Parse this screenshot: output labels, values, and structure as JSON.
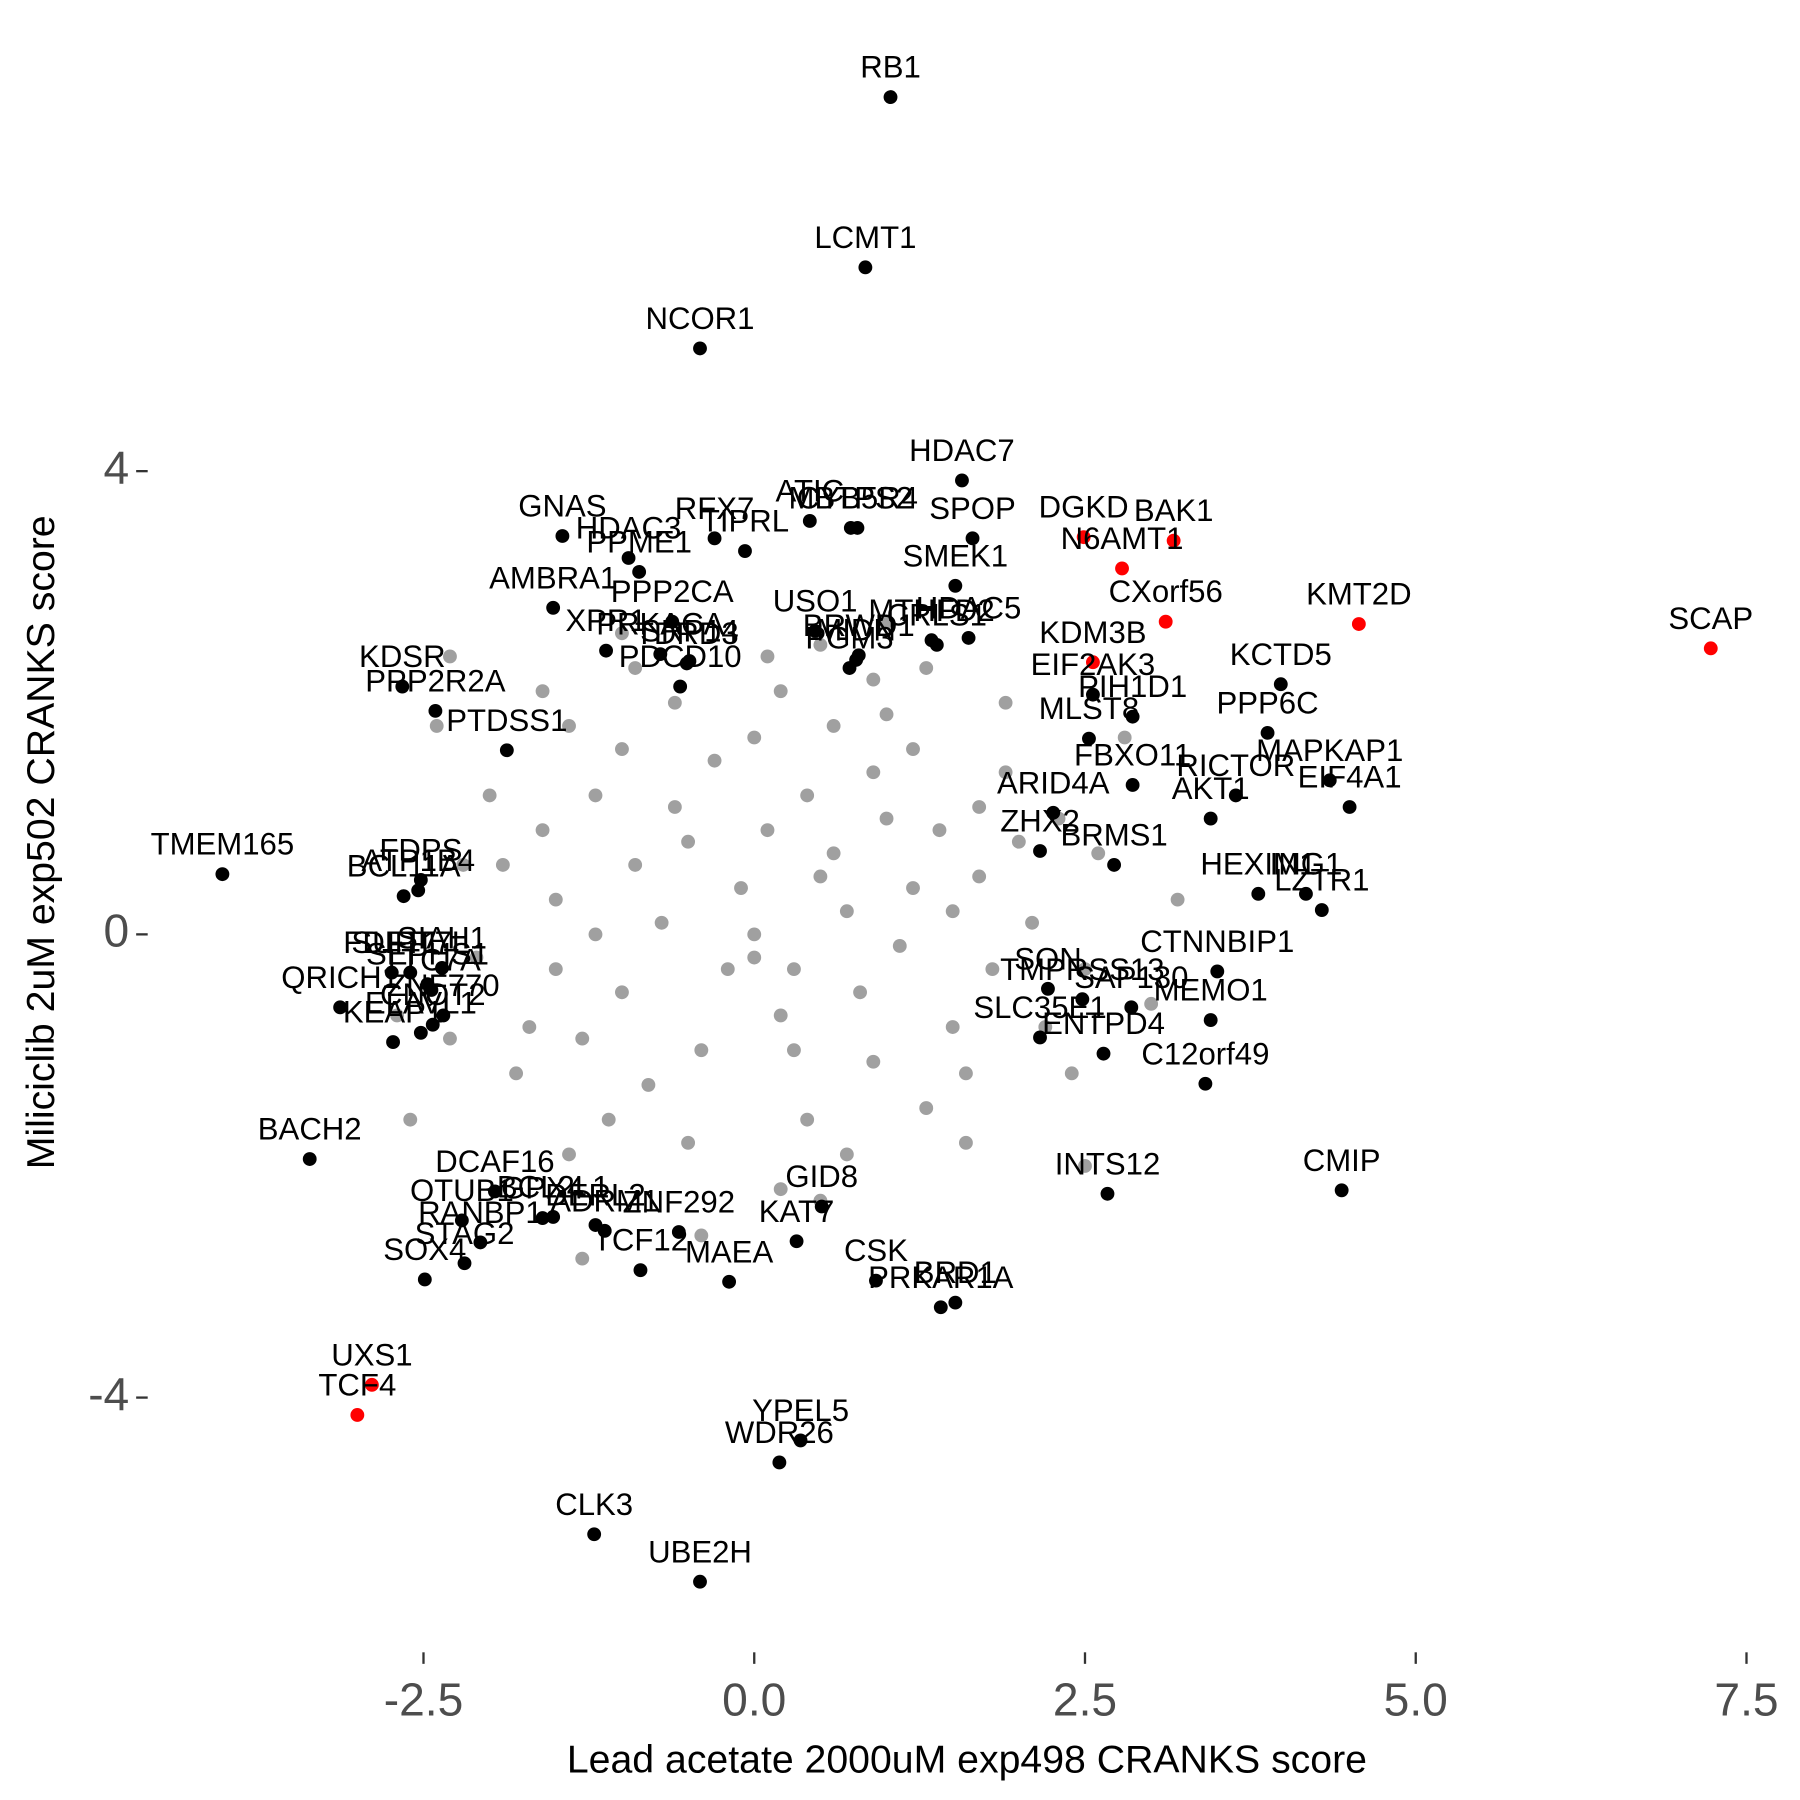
{
  "chart_data": {
    "type": "scatter",
    "xlabel": "Lead acetate 2000uM exp498 CRANKS score",
    "ylabel": "Miliciclib 2uM exp502 CRANKS score",
    "xlim": [
      -4.48,
      7.73
    ],
    "ylim": [
      -6.08,
      7.67
    ],
    "xticks": [
      -2.5,
      {
        "value": 0,
        "label": "0.0"
      },
      2.5,
      {
        "value": 5,
        "label": "5.0"
      },
      7.5
    ],
    "yticks": [
      -4,
      0,
      4
    ],
    "grid": false,
    "series": [
      {
        "color": "#a0a0a0",
        "x": [
          0,
          0.5,
          -0.5,
          1,
          -1,
          0.3,
          1.5,
          -1.5,
          0.8,
          -0.3,
          0.6,
          1.2,
          -1.2,
          1.8,
          -1.7,
          0.2,
          1.6,
          -0.8,
          0.4,
          2.0,
          -1.9,
          1.9,
          -1.4,
          0.9,
          -0.6,
          1.3,
          -1.1,
          2.2,
          -2.1,
          0.1,
          -0.2,
          0.7,
          1.1,
          -0.7,
          0.4,
          -0.9,
          1.4,
          -1.3,
          0.2,
          1.7,
          -1.6,
          0.9,
          -0.4,
          2.1,
          -2.0,
          0,
          1,
          -1,
          1.5,
          -1.8,
          2.4,
          -2.3,
          2.3,
          -2.2,
          0.5,
          1.3,
          -0.9,
          0.7,
          -0.5,
          2.5,
          -2.4,
          2.6,
          1.9,
          -1.6,
          0.2,
          1.6,
          -1.4,
          3.0,
          -2.7,
          -0.4,
          2.5,
          -1.3,
          0.5,
          2.8,
          -2.3,
          1,
          -1,
          3.2,
          -2.6,
          0,
          0.6,
          -0.1,
          1.2,
          -1.2,
          0.3,
          0.9,
          -0.6,
          1.7,
          -1.5,
          0.1
        ],
        "y": [
          0,
          0.5,
          0.8,
          1,
          -0.5,
          -1,
          0.2,
          0.3,
          -0.5,
          1.5,
          1.8,
          1.6,
          1.2,
          -0.3,
          -0.8,
          2.1,
          -1.2,
          -1.3,
          -1.6,
          0.8,
          0.6,
          1.4,
          1.8,
          2.2,
          2.0,
          -1.5,
          -1.6,
          -0.8,
          -0.2,
          0.9,
          -0.3,
          0.2,
          -0.1,
          0.1,
          1.2,
          0.6,
          0.9,
          -0.9,
          -0.7,
          0.5,
          0.9,
          -1.1,
          -1.0,
          0.1,
          1.2,
          1.7,
          1.9,
          1.6,
          -0.8,
          -1.2,
          -1.2,
          -0.9,
          1.0,
          0.6,
          2.5,
          2.3,
          2.3,
          -1.9,
          -1.8,
          -0.3,
          1.8,
          0.7,
          2.0,
          2.1,
          -2.2,
          -1.8,
          -1.9,
          -0.6,
          -0.7,
          -2.6,
          -2.0,
          -2.8,
          -2.3,
          1.7,
          2.4,
          2.7,
          2.6,
          0.3,
          -1.6,
          -0.2,
          0.7,
          0.4,
          0.4,
          0,
          -0.3,
          1.4,
          1.1,
          1.1,
          -0.3,
          2.4
        ]
      },
      {
        "color": "#000000",
        "labels": [
          "RB1",
          "LCMT1",
          "NCOR1",
          "ATIC",
          "HDAC7",
          "RFX7",
          "MBTPS2",
          "SMEK1",
          "GNAS",
          "HDAC3",
          "PPME1",
          "TIPRL",
          "CYB5R4",
          "SPOP",
          "KCTD5",
          "PPP6C",
          "PIH1D1",
          "RICTOR",
          "MAPKAP1",
          "EIF4A1",
          "AKT1",
          "FBXO11",
          "ING1",
          "LZTR1",
          "HEXIM1",
          "BRMS1",
          "CTNNBIP1",
          "MEMO1",
          "SAP130",
          "SON",
          "TMPRSS13",
          "SLC35E1",
          "C12orf49",
          "ENTPD4",
          "CMIP",
          "INTS12",
          "BRD1",
          "PRKAR1A",
          "CSK",
          "KAT7",
          "GID8",
          "YPEL5",
          "WDR26",
          "CLK3",
          "UBE2H",
          "ADRM1",
          "DERL2",
          "BCL2L1",
          "GPX4",
          "ZNF292",
          "TCF12",
          "MAEA",
          "OTUB1",
          "DCAF16",
          "SOX4",
          "RANBP1",
          "STAG2",
          "BACH2",
          "KEAP1",
          "QRICH1",
          "SUPT7L",
          "FDFT1",
          "TMEM165",
          "BCL11A",
          "ATP1B4",
          "FDPS",
          "SIAH1",
          "SEPHS1",
          "TTC7A",
          "ZNF770",
          "CNOT2",
          "ELAVL1",
          "KDSR",
          "PPP2R2A",
          "PTDSS1",
          "AMBRA1",
          "XPR1",
          "PPP2CA",
          "SRP14",
          "PRKACA",
          "PDCD10",
          "TDRD3",
          "BRWD1",
          "USO1",
          "HDAC5",
          "MTHFD2",
          "CRLS1",
          "MIDN",
          "PGM3",
          "EIF2AK3",
          "MLST8",
          "ARID4A",
          "ZHX2"
        ],
        "x": [
          1.03,
          0.84,
          -0.41,
          0.42,
          1.57,
          -0.3,
          0.73,
          1.52,
          -1.45,
          -0.95,
          -0.87,
          -0.07,
          0.78,
          1.65,
          3.98,
          3.88,
          2.86,
          3.64,
          4.35,
          4.5,
          3.45,
          2.86,
          4.17,
          4.29,
          3.81,
          2.72,
          3.5,
          3.45,
          2.85,
          2.22,
          2.48,
          2.16,
          3.41,
          2.64,
          4.44,
          2.67,
          1.52,
          1.41,
          0.92,
          0.32,
          0.51,
          0.35,
          0.19,
          -1.21,
          -0.41,
          -1.13,
          -1.2,
          -1.52,
          -1.6,
          -0.57,
          -0.86,
          -0.19,
          -2.21,
          -1.96,
          -2.49,
          -2.07,
          -2.19,
          -3.36,
          -2.73,
          -3.13,
          -2.6,
          -2.74,
          -4.02,
          -2.65,
          -2.54,
          -2.52,
          -2.36,
          -2.47,
          -2.44,
          -2.35,
          -2.43,
          -2.52,
          -2.66,
          -2.41,
          -1.87,
          -1.52,
          -1.12,
          -0.62,
          -0.49,
          -0.71,
          -0.56,
          -0.51,
          0.79,
          0.46,
          1.62,
          1.34,
          1.38,
          0.77,
          0.72,
          2.56,
          2.53,
          2.26,
          2.16
        ],
        "y": [
          7.23,
          5.76,
          5.06,
          3.57,
          3.92,
          3.42,
          3.51,
          3.01,
          3.44,
          3.25,
          3.13,
          3.31,
          3.51,
          3.42,
          2.16,
          1.74,
          1.88,
          1.2,
          1.33,
          1.1,
          1.0,
          1.29,
          0.35,
          0.21,
          0.35,
          0.6,
          -0.32,
          -0.74,
          -0.63,
          -0.47,
          -0.56,
          -0.89,
          -1.29,
          -1.03,
          -2.21,
          -2.24,
          -3.18,
          -3.22,
          -2.99,
          -2.65,
          -2.35,
          -4.37,
          -4.56,
          -5.18,
          -5.59,
          -2.56,
          -2.51,
          -2.44,
          -2.45,
          -2.57,
          -2.9,
          -3.0,
          -2.47,
          -2.22,
          -2.98,
          -2.66,
          -2.84,
          -1.94,
          -0.93,
          -0.63,
          -0.33,
          -0.33,
          0.52,
          0.33,
          0.38,
          0.47,
          -0.29,
          -0.43,
          -0.48,
          -0.7,
          -0.78,
          -0.85,
          2.14,
          1.93,
          1.59,
          2.82,
          2.45,
          2.7,
          2.36,
          2.42,
          2.14,
          2.34,
          2.41,
          2.62,
          2.56,
          2.54,
          2.5,
          2.37,
          2.3,
          2.07,
          1.69,
          1.05,
          0.72
        ]
      },
      {
        "color": "#ff0000",
        "labels": [
          "DGKD",
          "BAK1",
          "N6AMT1",
          "CXorf56",
          "KMT2D",
          "SCAP",
          "KDM3B",
          "UXS1",
          "TCF4"
        ],
        "x": [
          2.49,
          3.17,
          2.78,
          3.11,
          4.57,
          7.23,
          2.56,
          -2.89,
          -3.0
        ],
        "y": [
          3.43,
          3.4,
          3.16,
          2.7,
          2.68,
          2.47,
          2.35,
          -3.89,
          -4.15
        ]
      }
    ]
  }
}
